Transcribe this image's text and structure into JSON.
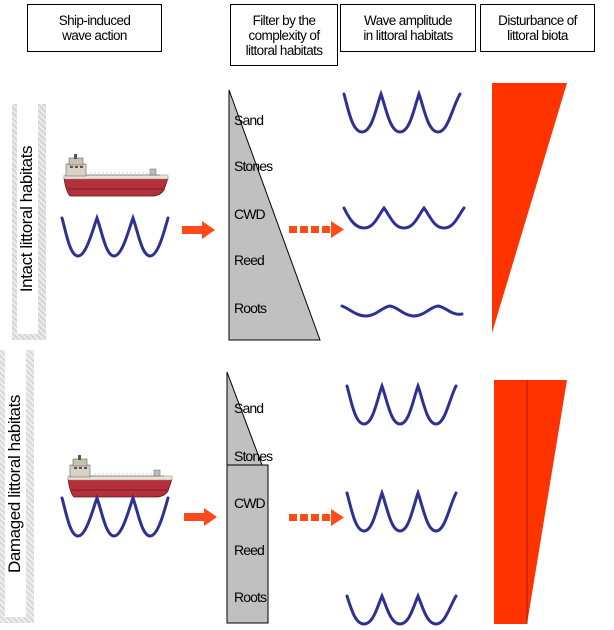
{
  "headers": {
    "wave_action": [
      "Ship-induced",
      "wave action"
    ],
    "filter": [
      "Filter by the",
      "complexity of",
      "littoral habitats"
    ],
    "amplitude": [
      "Wave amplitude",
      "in littoral habitats"
    ],
    "disturbance": [
      "Disturbance of",
      "littoral biota"
    ]
  },
  "scenarios": [
    {
      "label": "Intact littoral habitats",
      "habitats": [
        "Sand",
        "Stones",
        "CWD",
        "Reed",
        "Roots"
      ],
      "wave_amplitude_levels": [
        "high",
        "medium",
        "low"
      ]
    },
    {
      "label": "Damaged littoral habitats",
      "habitats": [
        "Sand",
        "Stones",
        "CWD",
        "Reed",
        "Roots"
      ],
      "wave_amplitude_levels": [
        "high",
        "high",
        "high"
      ]
    }
  ],
  "colors": {
    "wave": "#2e3192",
    "arrow": "#ff4a1c",
    "disturbance": "#ff3300",
    "filter": "#c0c0c0",
    "ship_hull": "#b5303a"
  },
  "icons": [
    "ship-icon",
    "solid-arrow-icon",
    "dashed-arrow-icon"
  ]
}
